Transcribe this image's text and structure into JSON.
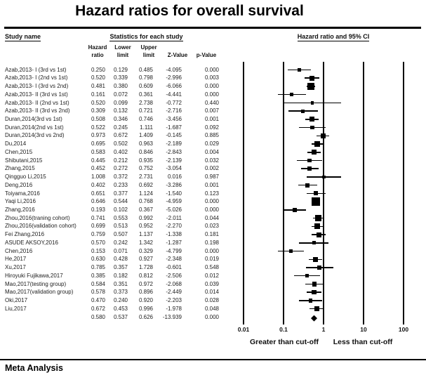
{
  "title": "Hazard ratios for overall survival",
  "table": {
    "study_header": "Study name",
    "stats_header": "Statistics for each study",
    "columns": [
      "Hazard\nratio",
      "Lower\nlimit",
      "Upper\nlimit",
      "Z-Value",
      "p-Value"
    ]
  },
  "plot": {
    "header": "Hazard ratio and 95% CI",
    "ticks": [
      0.01,
      0.1,
      1,
      10,
      100
    ],
    "left_caption": "Greater than cut-off",
    "right_caption": "Less than cut-off"
  },
  "footer": "Meta Analysis",
  "chart_data": {
    "type": "scatter",
    "subtype": "forest-plot",
    "title": "Hazard ratios for overall survival",
    "x_scale": "log10",
    "x_ticks": [
      0.01,
      0.1,
      1,
      10,
      100
    ],
    "x_range": [
      0.01,
      100
    ],
    "reference_line": 1,
    "axis_captions": [
      "Greater than cut-off",
      "Less than cut-off"
    ],
    "studies": [
      {
        "name": "Azab,2013- I (3rd vs 1st)",
        "hazard_ratio": 0.25,
        "lower_limit": 0.129,
        "upper_limit": 0.485,
        "z_value": -4.095,
        "p_value": 0.0
      },
      {
        "name": "Azab,2013- I (2nd vs 1st)",
        "hazard_ratio": 0.52,
        "lower_limit": 0.339,
        "upper_limit": 0.798,
        "z_value": -2.996,
        "p_value": 0.003
      },
      {
        "name": "Azab,2013- I (3rd vs 2nd)",
        "hazard_ratio": 0.481,
        "lower_limit": 0.38,
        "upper_limit": 0.609,
        "z_value": -6.066,
        "p_value": 0.0
      },
      {
        "name": "Azab,2013- II (3rd vs 1st)",
        "hazard_ratio": 0.161,
        "lower_limit": 0.072,
        "upper_limit": 0.361,
        "z_value": -4.441,
        "p_value": 0.0
      },
      {
        "name": "Azab,2013- II (2nd vs 1st)",
        "hazard_ratio": 0.52,
        "lower_limit": 0.099,
        "upper_limit": 2.738,
        "z_value": -0.772,
        "p_value": 0.44
      },
      {
        "name": "Azab,2013- II (3rd vs 2nd)",
        "hazard_ratio": 0.309,
        "lower_limit": 0.132,
        "upper_limit": 0.721,
        "z_value": -2.716,
        "p_value": 0.007
      },
      {
        "name": "Duran,2014(3rd vs 1st)",
        "hazard_ratio": 0.508,
        "lower_limit": 0.346,
        "upper_limit": 0.746,
        "z_value": -3.456,
        "p_value": 0.001
      },
      {
        "name": "Duran,2014(2nd vs 1st)",
        "hazard_ratio": 0.522,
        "lower_limit": 0.245,
        "upper_limit": 1.111,
        "z_value": -1.687,
        "p_value": 0.092
      },
      {
        "name": "Duran,2014(3rd vs 2nd)",
        "hazard_ratio": 0.973,
        "lower_limit": 0.672,
        "upper_limit": 1.409,
        "z_value": -0.145,
        "p_value": 0.885
      },
      {
        "name": "Du,2014",
        "hazard_ratio": 0.695,
        "lower_limit": 0.502,
        "upper_limit": 0.963,
        "z_value": -2.189,
        "p_value": 0.029
      },
      {
        "name": "Chen,2015",
        "hazard_ratio": 0.583,
        "lower_limit": 0.402,
        "upper_limit": 0.846,
        "z_value": -2.843,
        "p_value": 0.004
      },
      {
        "name": "Shibutani,2015",
        "hazard_ratio": 0.445,
        "lower_limit": 0.212,
        "upper_limit": 0.935,
        "z_value": -2.139,
        "p_value": 0.032
      },
      {
        "name": "Zhang,2015",
        "hazard_ratio": 0.452,
        "lower_limit": 0.272,
        "upper_limit": 0.752,
        "z_value": -3.054,
        "p_value": 0.002
      },
      {
        "name": "Qingguo Li,2015",
        "hazard_ratio": 1.008,
        "lower_limit": 0.372,
        "upper_limit": 2.731,
        "z_value": 0.016,
        "p_value": 0.987
      },
      {
        "name": "Deng,2016",
        "hazard_ratio": 0.402,
        "lower_limit": 0.233,
        "upper_limit": 0.692,
        "z_value": -3.286,
        "p_value": 0.001
      },
      {
        "name": "Toiyama,2016",
        "hazard_ratio": 0.651,
        "lower_limit": 0.377,
        "upper_limit": 1.124,
        "z_value": -1.54,
        "p_value": 0.123
      },
      {
        "name": "Yaqi Li,2016",
        "hazard_ratio": 0.646,
        "lower_limit": 0.544,
        "upper_limit": 0.768,
        "z_value": -4.959,
        "p_value": 0.0
      },
      {
        "name": "Zhang,2016",
        "hazard_ratio": 0.193,
        "lower_limit": 0.102,
        "upper_limit": 0.367,
        "z_value": -5.026,
        "p_value": 0.0
      },
      {
        "name": "Zhou,2016(traning cohort)",
        "hazard_ratio": 0.741,
        "lower_limit": 0.553,
        "upper_limit": 0.992,
        "z_value": -2.011,
        "p_value": 0.044
      },
      {
        "name": "Zhou,2016(validation cohort)",
        "hazard_ratio": 0.699,
        "lower_limit": 0.513,
        "upper_limit": 0.952,
        "z_value": -2.27,
        "p_value": 0.023
      },
      {
        "name": "Fei Zhang,2016",
        "hazard_ratio": 0.759,
        "lower_limit": 0.507,
        "upper_limit": 1.137,
        "z_value": -1.338,
        "p_value": 0.181
      },
      {
        "name": "ASUDE AKSOY,2016",
        "hazard_ratio": 0.57,
        "lower_limit": 0.242,
        "upper_limit": 1.342,
        "z_value": -1.287,
        "p_value": 0.198
      },
      {
        "name": "Chen,2016",
        "hazard_ratio": 0.153,
        "lower_limit": 0.071,
        "upper_limit": 0.329,
        "z_value": -4.799,
        "p_value": 0.0
      },
      {
        "name": "He,2017",
        "hazard_ratio": 0.63,
        "lower_limit": 0.428,
        "upper_limit": 0.927,
        "z_value": -2.348,
        "p_value": 0.019
      },
      {
        "name": "Xu,2017",
        "hazard_ratio": 0.785,
        "lower_limit": 0.357,
        "upper_limit": 1.728,
        "z_value": -0.601,
        "p_value": 0.548
      },
      {
        "name": "Hiroyuki Fujikawa,2017",
        "hazard_ratio": 0.385,
        "lower_limit": 0.182,
        "upper_limit": 0.812,
        "z_value": -2.506,
        "p_value": 0.012
      },
      {
        "name": "Mao,2017(testing group)",
        "hazard_ratio": 0.584,
        "lower_limit": 0.351,
        "upper_limit": 0.972,
        "z_value": -2.068,
        "p_value": 0.039
      },
      {
        "name": "Mao,2017(validation group)",
        "hazard_ratio": 0.578,
        "lower_limit": 0.373,
        "upper_limit": 0.896,
        "z_value": -2.449,
        "p_value": 0.014
      },
      {
        "name": "Oki,2017",
        "hazard_ratio": 0.47,
        "lower_limit": 0.24,
        "upper_limit": 0.92,
        "z_value": -2.203,
        "p_value": 0.028
      },
      {
        "name": "Liu,2017",
        "hazard_ratio": 0.672,
        "lower_limit": 0.453,
        "upper_limit": 0.996,
        "z_value": -1.978,
        "p_value": 0.048
      }
    ],
    "summary": {
      "name": "",
      "hazard_ratio": 0.58,
      "lower_limit": 0.537,
      "upper_limit": 0.626,
      "z_value": -13.939,
      "p_value": 0.0
    }
  }
}
